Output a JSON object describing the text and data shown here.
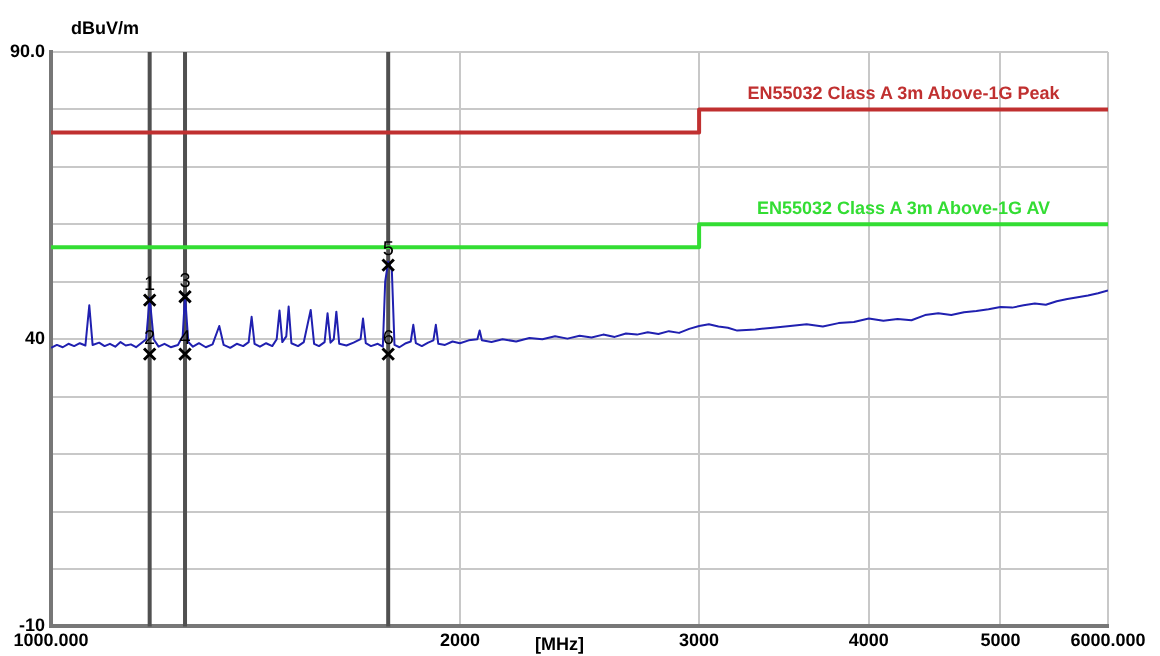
{
  "chart_data": {
    "type": "line",
    "xlabel": "[MHz]",
    "ylabel": "dBuV/m",
    "log": "x",
    "grid": true,
    "legend": false,
    "xlim": [
      1000,
      6000
    ],
    "xticks": [
      {
        "value": 1000,
        "label": "1000.000"
      },
      2000,
      3000,
      4000,
      5000,
      {
        "value": 6000,
        "label": "6000.000"
      }
    ],
    "ylim": [
      -10,
      90
    ],
    "yticks": [
      {
        "value": -10,
        "label": "-10"
      },
      {
        "value": 0,
        "label": null
      },
      {
        "value": 10,
        "label": null
      },
      {
        "value": 20,
        "label": null
      },
      {
        "value": 30,
        "label": null
      },
      {
        "value": 40,
        "label": "40"
      },
      {
        "value": 50,
        "label": null
      },
      {
        "value": 60,
        "label": null
      },
      {
        "value": 70,
        "label": null
      },
      {
        "value": 80,
        "label": null
      },
      {
        "value": 90,
        "label": "90.0"
      }
    ],
    "ref_lines": [
      {
        "axis": "x",
        "value": 1182,
        "color": "#505050"
      },
      {
        "axis": "x",
        "value": 1255,
        "color": "#505050"
      },
      {
        "axis": "x",
        "value": 1771,
        "color": "#505050"
      }
    ],
    "annotations": [
      {
        "text": "1",
        "x": 1182,
        "y": 46.8
      },
      {
        "text": "2",
        "x": 1182,
        "y": 37.4
      },
      {
        "text": "3",
        "x": 1255,
        "y": 47.4
      },
      {
        "text": "4",
        "x": 1255,
        "y": 37.4
      },
      {
        "text": "5",
        "x": 1771,
        "y": 52.9
      },
      {
        "text": "6",
        "x": 1771,
        "y": 37.4
      }
    ],
    "series": [
      {
        "type": "step",
        "name": "EN55032 Class A 3m Above-1G Peak",
        "color": "#c03030",
        "x": [
          1000,
          3000,
          6000
        ],
        "values": [
          76,
          80,
          80
        ]
      },
      {
        "type": "step",
        "name": "EN55032 Class A 3m Above-1G AV",
        "color": "#33dd33",
        "x": [
          1000,
          3000,
          6000
        ],
        "values": [
          56,
          60,
          60
        ]
      },
      {
        "type": "line",
        "color": "#2020b0",
        "marker": "none",
        "x": [
          1000,
          1010,
          1020,
          1030,
          1040,
          1050,
          1060,
          1067,
          1073,
          1085,
          1095,
          1105,
          1115,
          1125,
          1135,
          1145,
          1155,
          1165,
          1175,
          1182,
          1190,
          1200,
          1212,
          1225,
          1240,
          1250,
          1255,
          1262,
          1272,
          1285,
          1300,
          1315,
          1330,
          1340,
          1355,
          1370,
          1385,
          1398,
          1405,
          1412,
          1425,
          1440,
          1455,
          1466,
          1473,
          1480,
          1490,
          1496,
          1503,
          1520,
          1535,
          1553,
          1562,
          1575,
          1590,
          1598,
          1606,
          1615,
          1622,
          1630,
          1650,
          1670,
          1690,
          1697,
          1705,
          1720,
          1740,
          1755,
          1762,
          1771,
          1782,
          1790,
          1805,
          1825,
          1840,
          1848,
          1856,
          1875,
          1895,
          1912,
          1920,
          1928,
          1950,
          1975,
          2000,
          2030,
          2060,
          2068,
          2076,
          2110,
          2150,
          2200,
          2250,
          2300,
          2350,
          2400,
          2450,
          2500,
          2550,
          2600,
          2650,
          2700,
          2750,
          2800,
          2850,
          2900,
          2950,
          3000,
          3050,
          3100,
          3150,
          3200,
          3300,
          3400,
          3500,
          3600,
          3700,
          3800,
          3900,
          4000,
          4100,
          4200,
          4300,
          4400,
          4500,
          4600,
          4700,
          4800,
          4900,
          5000,
          5100,
          5200,
          5300,
          5400,
          5500,
          5600,
          5700,
          5800,
          5900,
          6000
        ],
        "values": [
          38.5,
          39,
          38.6,
          39.2,
          38.8,
          39.3,
          38.9,
          45.9,
          39,
          39.4,
          38.8,
          39.2,
          38.7,
          39.5,
          38.9,
          39.1,
          38.6,
          39.3,
          40,
          47.2,
          40,
          38.7,
          39.2,
          38.6,
          39,
          40.5,
          47.6,
          39.5,
          38.7,
          39.3,
          38.6,
          39.1,
          42.3,
          39,
          38.5,
          39.2,
          38.8,
          39.5,
          43.9,
          39.2,
          38.7,
          39.3,
          38.8,
          40,
          45,
          39.5,
          40.5,
          45.7,
          39.3,
          38.8,
          39.5,
          45.1,
          39.2,
          38.8,
          39.5,
          44.5,
          39.4,
          40,
          44.8,
          39.2,
          38.9,
          39.4,
          40,
          43.6,
          39.3,
          38.8,
          39.2,
          38.7,
          50,
          53.5,
          52,
          39,
          38.6,
          39.3,
          39.6,
          42.5,
          39.3,
          38.8,
          39.4,
          39.8,
          42.5,
          39.2,
          39,
          39.6,
          39.3,
          39.8,
          40,
          41.5,
          39.8,
          39.5,
          40,
          39.6,
          40.2,
          40,
          40.5,
          40.1,
          40.6,
          40.3,
          40.8,
          40.4,
          41,
          40.8,
          41.2,
          40.9,
          41.4,
          41.1,
          41.8,
          42.3,
          42.6,
          42.2,
          42,
          41.5,
          41.7,
          42,
          42.3,
          42.6,
          42.2,
          42.8,
          43,
          43.6,
          43.2,
          43.5,
          43.3,
          44.2,
          44.5,
          44.2,
          44.7,
          44.9,
          45.2,
          45.6,
          45.5,
          45.9,
          46.2,
          46,
          46.6,
          47,
          47.3,
          47.6,
          48,
          48.5
        ]
      },
      {
        "type": "scatter",
        "color": "#000000",
        "marker": "cross",
        "x": [
          1182,
          1182,
          1255,
          1255,
          1771,
          1771
        ],
        "values": [
          46.8,
          37.4,
          47.4,
          37.4,
          52.9,
          37.4
        ]
      }
    ]
  }
}
